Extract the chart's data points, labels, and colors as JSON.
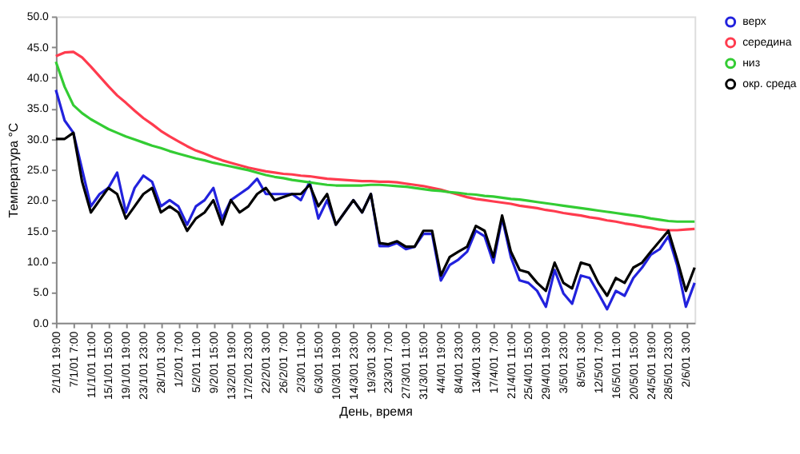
{
  "chart_data": {
    "type": "line",
    "xlabel": "День, время",
    "ylabel": "Температура °С",
    "categories": [
      "2/1/01 19:00",
      null,
      "7/1/01  7:00",
      null,
      "11/1/01 11:00",
      null,
      "15/1/01 15:00",
      null,
      "19/1/01 19:00",
      null,
      "23/1/01 23:00",
      null,
      "28/1/01  3:00",
      null,
      "1/2/01  7:00",
      null,
      "5/2/01 11:00",
      null,
      "9/2/01 15:00",
      null,
      "13/2/01 19:00",
      null,
      "17/2/01 23:00",
      null,
      "22/2/01  3:00",
      null,
      "26/2/01  7:00",
      null,
      "2/3/01 11:00",
      null,
      "6/3/01 15:00",
      null,
      "10/3/01 19:00",
      null,
      "14/3/01 23:00",
      null,
      "19/3/01  3:00",
      null,
      "23/3/01  7:00",
      null,
      "27/3/01 11:00",
      null,
      "31/3/01 15:00",
      null,
      "4/4/01 19:00",
      null,
      "8/4/01 23:00",
      null,
      "13/4/01  3:00",
      null,
      "17/4/01  7:00",
      null,
      "21/4/01 11:00",
      null,
      "25/4/01 15:00",
      null,
      "29/4/01 19:00",
      null,
      "3/5/01 23:00",
      null,
      "8/5/01  3:00",
      null,
      "12/5/01  7:00",
      null,
      "16/5/01 11:00",
      null,
      "20/5/01 15:00",
      null,
      "24/5/01 19:00",
      null,
      "28/5/01 23:00",
      null,
      "2/6/01  3:00",
      null
    ],
    "series": [
      {
        "name": "верх",
        "color": "#2222dd",
        "values": [
          38,
          33,
          31,
          25,
          19,
          21,
          22,
          24.5,
          18,
          22,
          24,
          23,
          19,
          20,
          19,
          16,
          19,
          20,
          22,
          17,
          20,
          21,
          22,
          23.5,
          21,
          21,
          21,
          21,
          20,
          23,
          17,
          20,
          16,
          18,
          20,
          18,
          21,
          12.5,
          12.5,
          13,
          12,
          12.4,
          14.5,
          14.5,
          6.9,
          9.4,
          10.3,
          11.6,
          15.0,
          14.1,
          9.8,
          17.1,
          10.7,
          6.9,
          6.5,
          5.2,
          2.6,
          8.6,
          4.8,
          3.1,
          7.7,
          7.3,
          4.8,
          2.2,
          5.2,
          4.4,
          7.3,
          9.0,
          11.1,
          12.0,
          14.1,
          9.4,
          2.6,
          6.5
        ]
      },
      {
        "name": "середина",
        "color": "#ff3b4e",
        "values": [
          43.5,
          44.1,
          44.2,
          43.3,
          41.8,
          40.2,
          38.6,
          37.1,
          35.9,
          34.6,
          33.4,
          32.4,
          31.3,
          30.4,
          29.6,
          28.8,
          28.1,
          27.6,
          27.0,
          26.5,
          26.1,
          25.7,
          25.3,
          25.0,
          24.7,
          24.5,
          24.3,
          24.2,
          24.0,
          23.9,
          23.7,
          23.5,
          23.4,
          23.3,
          23.2,
          23.1,
          23.1,
          23.0,
          23.0,
          22.9,
          22.7,
          22.5,
          22.3,
          22.0,
          21.7,
          21.3,
          20.9,
          20.5,
          20.2,
          20.0,
          19.8,
          19.6,
          19.4,
          19.1,
          18.9,
          18.7,
          18.4,
          18.2,
          17.9,
          17.7,
          17.5,
          17.2,
          17.0,
          16.7,
          16.5,
          16.2,
          16.0,
          15.7,
          15.5,
          15.2,
          15.1,
          15.1,
          15.2,
          15.3
        ]
      },
      {
        "name": "низ",
        "color": "#33cc33",
        "values": [
          42.6,
          38.5,
          35.5,
          34.2,
          33.2,
          32.4,
          31.6,
          31.0,
          30.4,
          29.9,
          29.4,
          28.9,
          28.5,
          28.0,
          27.6,
          27.2,
          26.8,
          26.5,
          26.1,
          25.8,
          25.5,
          25.2,
          24.9,
          24.5,
          24.1,
          23.8,
          23.6,
          23.3,
          23.1,
          22.9,
          22.7,
          22.5,
          22.4,
          22.4,
          22.4,
          22.4,
          22.5,
          22.5,
          22.4,
          22.3,
          22.2,
          22.0,
          21.8,
          21.6,
          21.5,
          21.3,
          21.2,
          21.0,
          20.9,
          20.7,
          20.6,
          20.4,
          20.2,
          20.1,
          19.9,
          19.7,
          19.5,
          19.3,
          19.1,
          18.9,
          18.7,
          18.5,
          18.3,
          18.1,
          17.9,
          17.7,
          17.5,
          17.3,
          17.0,
          16.8,
          16.6,
          16.5,
          16.5,
          16.5
        ]
      },
      {
        "name": "окр. среда",
        "color": "#000000",
        "values": [
          30,
          30,
          31,
          23,
          18,
          20,
          22,
          21,
          17,
          19,
          21,
          22,
          18,
          19,
          18,
          15,
          17,
          18,
          20,
          16,
          20,
          18,
          19,
          21,
          22,
          20,
          20.5,
          21,
          21,
          22.5,
          19,
          21,
          16,
          18,
          20,
          18,
          21,
          13,
          12.8,
          13.3,
          12.4,
          12.4,
          15.0,
          15.0,
          7.7,
          10.7,
          11.6,
          12.4,
          15.8,
          15.0,
          10.7,
          17.5,
          11.6,
          8.6,
          8.2,
          6.5,
          5.2,
          9.8,
          6.5,
          5.6,
          9.8,
          9.4,
          6.5,
          4.4,
          7.3,
          6.5,
          9.0,
          9.8,
          11.6,
          13.3,
          15.0,
          10.3,
          5.2,
          9.0
        ]
      }
    ],
    "ylim": [
      0,
      50
    ],
    "yticks": [
      {
        "value": 0,
        "label": "0.0"
      },
      {
        "value": 5,
        "label": "5.0"
      },
      {
        "value": 10,
        "label": "10.0"
      },
      {
        "value": 15,
        "label": "15.0"
      },
      {
        "value": 20,
        "label": "20.0"
      },
      {
        "value": 25,
        "label": "25.0"
      },
      {
        "value": 30,
        "label": "30.0"
      },
      {
        "value": 35,
        "label": "35.0"
      },
      {
        "value": 40,
        "label": "40.0"
      },
      {
        "value": 45,
        "label": "45.0"
      },
      {
        "value": 50,
        "label": "50.0"
      }
    ],
    "grid": false,
    "legend": "right",
    "marker": "none",
    "line_style": "solid"
  }
}
